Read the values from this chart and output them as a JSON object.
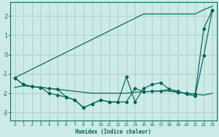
{
  "xlabel": "Humidex (Indice chaleur)",
  "xlim": [
    -0.5,
    23.5
  ],
  "ylim": [
    -3.4,
    2.7
  ],
  "bg_color": "#cceae8",
  "grid_color": "#b0d0cc",
  "line_color": "#006655",
  "x": [
    0,
    1,
    2,
    3,
    4,
    5,
    6,
    7,
    8,
    9,
    10,
    11,
    12,
    13,
    14,
    15,
    16,
    17,
    18,
    19,
    20,
    21,
    22,
    23
  ],
  "line_straight": [
    -1.2,
    -0.98,
    -0.76,
    -0.54,
    -0.32,
    -0.1,
    0.12,
    0.34,
    0.56,
    0.78,
    1.0,
    1.22,
    1.44,
    1.66,
    1.88,
    2.1,
    2.1,
    2.1,
    2.1,
    2.1,
    2.1,
    2.1,
    2.32,
    2.5
  ],
  "line_wavy": [
    -1.2,
    -1.55,
    -1.65,
    -1.7,
    -2.0,
    -2.1,
    -2.2,
    -2.35,
    -2.75,
    -2.55,
    -2.35,
    -2.45,
    -2.45,
    -1.15,
    -2.45,
    -1.75,
    -1.55,
    -1.45,
    -1.8,
    -1.9,
    -2.05,
    -2.15,
    -0.05,
    2.3
  ],
  "line_flat1": [
    -1.7,
    -1.62,
    -1.65,
    -1.7,
    -1.75,
    -1.8,
    -1.85,
    -1.9,
    -1.95,
    -2.0,
    -2.0,
    -2.0,
    -2.0,
    -2.0,
    -1.95,
    -1.92,
    -1.9,
    -1.88,
    -1.9,
    -1.95,
    -2.0,
    -2.05,
    -2.1,
    -2.0
  ],
  "line_main": [
    -1.2,
    -1.55,
    -1.65,
    -1.7,
    -1.75,
    -1.8,
    -2.2,
    -2.35,
    -2.75,
    -2.55,
    -2.35,
    -2.45,
    -2.45,
    -2.45,
    -1.75,
    -1.92,
    -1.9,
    -1.88,
    -1.8,
    -1.95,
    -2.0,
    -2.05,
    1.35,
    2.3
  ],
  "yticks": [
    -3,
    -2,
    -1,
    0,
    1,
    2
  ],
  "xticks": [
    0,
    1,
    2,
    3,
    4,
    5,
    6,
    7,
    8,
    9,
    10,
    11,
    12,
    13,
    14,
    15,
    16,
    17,
    18,
    19,
    20,
    21,
    22,
    23
  ]
}
